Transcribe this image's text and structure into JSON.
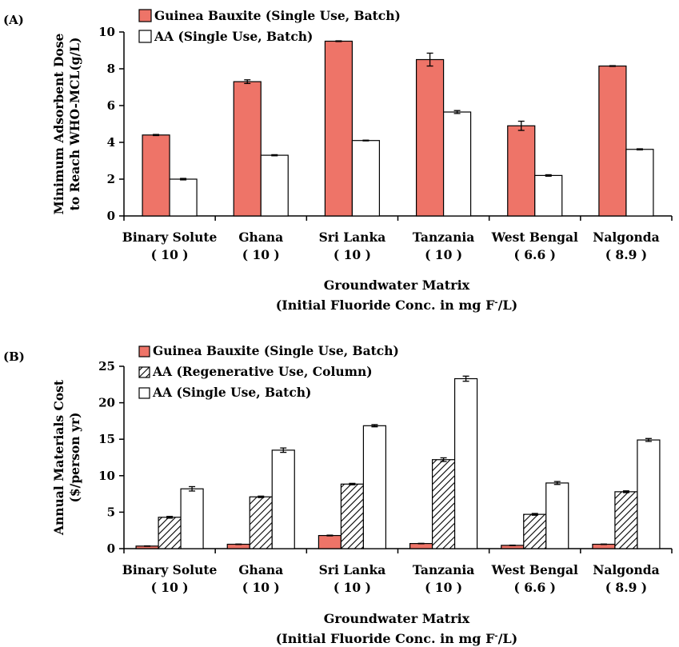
{
  "chart_data": [
    {
      "panel_label": "(A)",
      "type": "bar",
      "categories": [
        "Binary Solute",
        "Ghana",
        "Sri Lanka",
        "Tanzania",
        "West Bengal",
        "Nalgonda"
      ],
      "category_sublabels": [
        "( 10 )",
        "( 10 )",
        "( 10 )",
        "( 10 )",
        "( 6.6 )",
        "( 8.9 )"
      ],
      "series": [
        {
          "name": "Guinea Bauxite (Single Use, Batch)",
          "pattern": "solid",
          "color": "#ee7468",
          "values": [
            4.4,
            7.3,
            9.5,
            8.5,
            4.9,
            8.15
          ],
          "errors": [
            0.03,
            0.1,
            0.02,
            0.35,
            0.25,
            0.02
          ]
        },
        {
          "name": "AA (Single Use, Batch)",
          "pattern": "none",
          "color": "#ffffff",
          "values": [
            2.0,
            3.3,
            4.1,
            5.65,
            2.2,
            3.62
          ],
          "errors": [
            0.04,
            0.03,
            0.02,
            0.08,
            0.04,
            0.03
          ]
        }
      ],
      "ylabel_line1": "Minimum Adsorbent Dose",
      "ylabel_line2": "to Reach WHO-MCL(g/L)",
      "xlabel_line1": "Groundwater Matrix",
      "xlabel_line2_pre": "(Initial Fluoride Conc. in mg F",
      "xlabel_line2_sup": "-",
      "xlabel_line2_post": "/L)",
      "ylim": [
        0,
        10
      ],
      "yticks": [
        0,
        2,
        4,
        6,
        8,
        10
      ],
      "legend_position": "top-left",
      "grid": false
    },
    {
      "panel_label": "(B)",
      "type": "bar",
      "categories": [
        "Binary Solute",
        "Ghana",
        "Sri Lanka",
        "Tanzania",
        "West Bengal",
        "Nalgonda"
      ],
      "category_sublabels": [
        "( 10 )",
        "( 10 )",
        "( 10 )",
        "( 10 )",
        "( 6.6 )",
        "( 8.9 )"
      ],
      "series": [
        {
          "name": "Guinea Bauxite (Single Use, Batch)",
          "pattern": "solid",
          "color": "#ee7468",
          "values": [
            0.35,
            0.6,
            1.8,
            0.7,
            0.45,
            0.6
          ],
          "errors": [
            0.03,
            0.03,
            0.05,
            0.03,
            0.03,
            0.03
          ]
        },
        {
          "name": "AA (Regenerative Use, Column)",
          "pattern": "hatch",
          "color": "#ffffff",
          "values": [
            4.3,
            7.1,
            8.85,
            12.2,
            4.7,
            7.8
          ],
          "errors": [
            0.12,
            0.1,
            0.1,
            0.25,
            0.12,
            0.12
          ]
        },
        {
          "name": "AA (Single Use, Batch)",
          "pattern": "none",
          "color": "#ffffff",
          "values": [
            8.2,
            13.5,
            16.85,
            23.3,
            9.0,
            14.9
          ],
          "errors": [
            0.3,
            0.3,
            0.15,
            0.35,
            0.2,
            0.2
          ]
        }
      ],
      "ylabel_line1": "Annual Materials Cost",
      "ylabel_line2": "($/person yr)",
      "xlabel_line1": "Groundwater Matrix",
      "xlabel_line2_pre": "(Initial Fluoride Conc. in mg F",
      "xlabel_line2_sup": "-",
      "xlabel_line2_post": "/L)",
      "ylim": [
        0,
        25
      ],
      "yticks": [
        0,
        5,
        10,
        15,
        20,
        25
      ],
      "legend_position": "top-left",
      "grid": false
    }
  ]
}
